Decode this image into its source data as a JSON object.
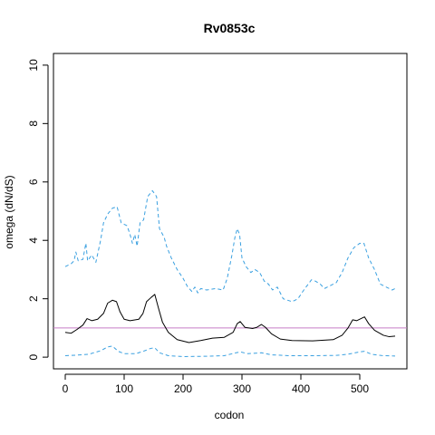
{
  "chart_data": {
    "type": "line",
    "title": "Rv0853c",
    "xlabel": "codon",
    "ylabel": "omega (dN/dS)",
    "xlim": [
      -20,
      580
    ],
    "ylim": [
      -0.4,
      10.4
    ],
    "xticks": [
      0,
      100,
      200,
      300,
      400,
      500
    ],
    "yticks": [
      0,
      2,
      4,
      6,
      8,
      10
    ],
    "grid": false,
    "reference_line": {
      "y": 1,
      "color": "#c77cc7"
    },
    "series": [
      {
        "style": "solid",
        "color": "#000000",
        "points": [
          [
            0,
            0.85
          ],
          [
            10,
            0.82
          ],
          [
            20,
            0.95
          ],
          [
            30,
            1.1
          ],
          [
            37,
            1.32
          ],
          [
            45,
            1.25
          ],
          [
            55,
            1.3
          ],
          [
            65,
            1.5
          ],
          [
            72,
            1.85
          ],
          [
            80,
            1.95
          ],
          [
            87,
            1.9
          ],
          [
            93,
            1.55
          ],
          [
            100,
            1.3
          ],
          [
            110,
            1.25
          ],
          [
            125,
            1.3
          ],
          [
            132,
            1.5
          ],
          [
            138,
            1.9
          ],
          [
            146,
            2.05
          ],
          [
            152,
            2.15
          ],
          [
            158,
            1.7
          ],
          [
            165,
            1.2
          ],
          [
            175,
            0.85
          ],
          [
            190,
            0.6
          ],
          [
            210,
            0.5
          ],
          [
            230,
            0.57
          ],
          [
            250,
            0.65
          ],
          [
            270,
            0.68
          ],
          [
            285,
            0.85
          ],
          [
            292,
            1.15
          ],
          [
            297,
            1.22
          ],
          [
            305,
            1.02
          ],
          [
            318,
            0.98
          ],
          [
            325,
            1.02
          ],
          [
            333,
            1.12
          ],
          [
            340,
            1.02
          ],
          [
            350,
            0.8
          ],
          [
            365,
            0.62
          ],
          [
            385,
            0.57
          ],
          [
            420,
            0.56
          ],
          [
            455,
            0.6
          ],
          [
            470,
            0.75
          ],
          [
            480,
            1.0
          ],
          [
            488,
            1.28
          ],
          [
            495,
            1.25
          ],
          [
            502,
            1.32
          ],
          [
            508,
            1.38
          ],
          [
            515,
            1.15
          ],
          [
            525,
            0.92
          ],
          [
            540,
            0.75
          ],
          [
            550,
            0.7
          ],
          [
            560,
            0.72
          ]
        ]
      },
      {
        "style": "dashed",
        "color": "#3aa0e0",
        "points": [
          [
            0,
            3.1
          ],
          [
            10,
            3.2
          ],
          [
            15,
            3.3
          ],
          [
            18,
            3.6
          ],
          [
            22,
            3.3
          ],
          [
            30,
            3.35
          ],
          [
            35,
            3.9
          ],
          [
            38,
            3.3
          ],
          [
            45,
            3.5
          ],
          [
            52,
            3.25
          ],
          [
            60,
            4.0
          ],
          [
            65,
            4.6
          ],
          [
            72,
            4.9
          ],
          [
            80,
            5.1
          ],
          [
            88,
            5.15
          ],
          [
            95,
            4.6
          ],
          [
            105,
            4.5
          ],
          [
            110,
            4.2
          ],
          [
            114,
            3.9
          ],
          [
            118,
            4.2
          ],
          [
            122,
            3.8
          ],
          [
            127,
            4.6
          ],
          [
            133,
            4.7
          ],
          [
            140,
            5.5
          ],
          [
            148,
            5.7
          ],
          [
            155,
            5.5
          ],
          [
            160,
            4.4
          ],
          [
            168,
            4.1
          ],
          [
            172,
            3.8
          ],
          [
            180,
            3.4
          ],
          [
            190,
            3.0
          ],
          [
            200,
            2.7
          ],
          [
            208,
            2.4
          ],
          [
            215,
            2.25
          ],
          [
            220,
            2.4
          ],
          [
            225,
            2.2
          ],
          [
            230,
            2.35
          ],
          [
            240,
            2.3
          ],
          [
            255,
            2.35
          ],
          [
            268,
            2.3
          ],
          [
            275,
            2.7
          ],
          [
            283,
            3.5
          ],
          [
            288,
            4.1
          ],
          [
            292,
            4.4
          ],
          [
            296,
            4.2
          ],
          [
            300,
            3.4
          ],
          [
            307,
            3.1
          ],
          [
            315,
            2.9
          ],
          [
            322,
            3.0
          ],
          [
            330,
            2.9
          ],
          [
            338,
            2.6
          ],
          [
            345,
            2.5
          ],
          [
            352,
            2.3
          ],
          [
            360,
            2.4
          ],
          [
            370,
            2.0
          ],
          [
            385,
            1.9
          ],
          [
            395,
            2.0
          ],
          [
            405,
            2.3
          ],
          [
            418,
            2.65
          ],
          [
            425,
            2.6
          ],
          [
            433,
            2.5
          ],
          [
            440,
            2.35
          ],
          [
            450,
            2.45
          ],
          [
            460,
            2.55
          ],
          [
            470,
            2.9
          ],
          [
            480,
            3.4
          ],
          [
            490,
            3.75
          ],
          [
            500,
            3.9
          ],
          [
            507,
            3.9
          ],
          [
            515,
            3.4
          ],
          [
            525,
            3.0
          ],
          [
            535,
            2.5
          ],
          [
            545,
            2.4
          ],
          [
            555,
            2.3
          ],
          [
            560,
            2.35
          ]
        ]
      },
      {
        "style": "dashed",
        "color": "#3aa0e0",
        "points": [
          [
            0,
            0.05
          ],
          [
            20,
            0.07
          ],
          [
            40,
            0.1
          ],
          [
            60,
            0.22
          ],
          [
            72,
            0.35
          ],
          [
            80,
            0.38
          ],
          [
            90,
            0.2
          ],
          [
            100,
            0.12
          ],
          [
            120,
            0.12
          ],
          [
            135,
            0.22
          ],
          [
            145,
            0.3
          ],
          [
            152,
            0.32
          ],
          [
            160,
            0.15
          ],
          [
            175,
            0.05
          ],
          [
            200,
            0.02
          ],
          [
            240,
            0.03
          ],
          [
            270,
            0.05
          ],
          [
            290,
            0.15
          ],
          [
            297,
            0.18
          ],
          [
            310,
            0.12
          ],
          [
            333,
            0.15
          ],
          [
            350,
            0.08
          ],
          [
            380,
            0.05
          ],
          [
            420,
            0.05
          ],
          [
            460,
            0.06
          ],
          [
            480,
            0.1
          ],
          [
            500,
            0.18
          ],
          [
            508,
            0.2
          ],
          [
            520,
            0.1
          ],
          [
            540,
            0.05
          ],
          [
            560,
            0.04
          ]
        ]
      }
    ]
  }
}
